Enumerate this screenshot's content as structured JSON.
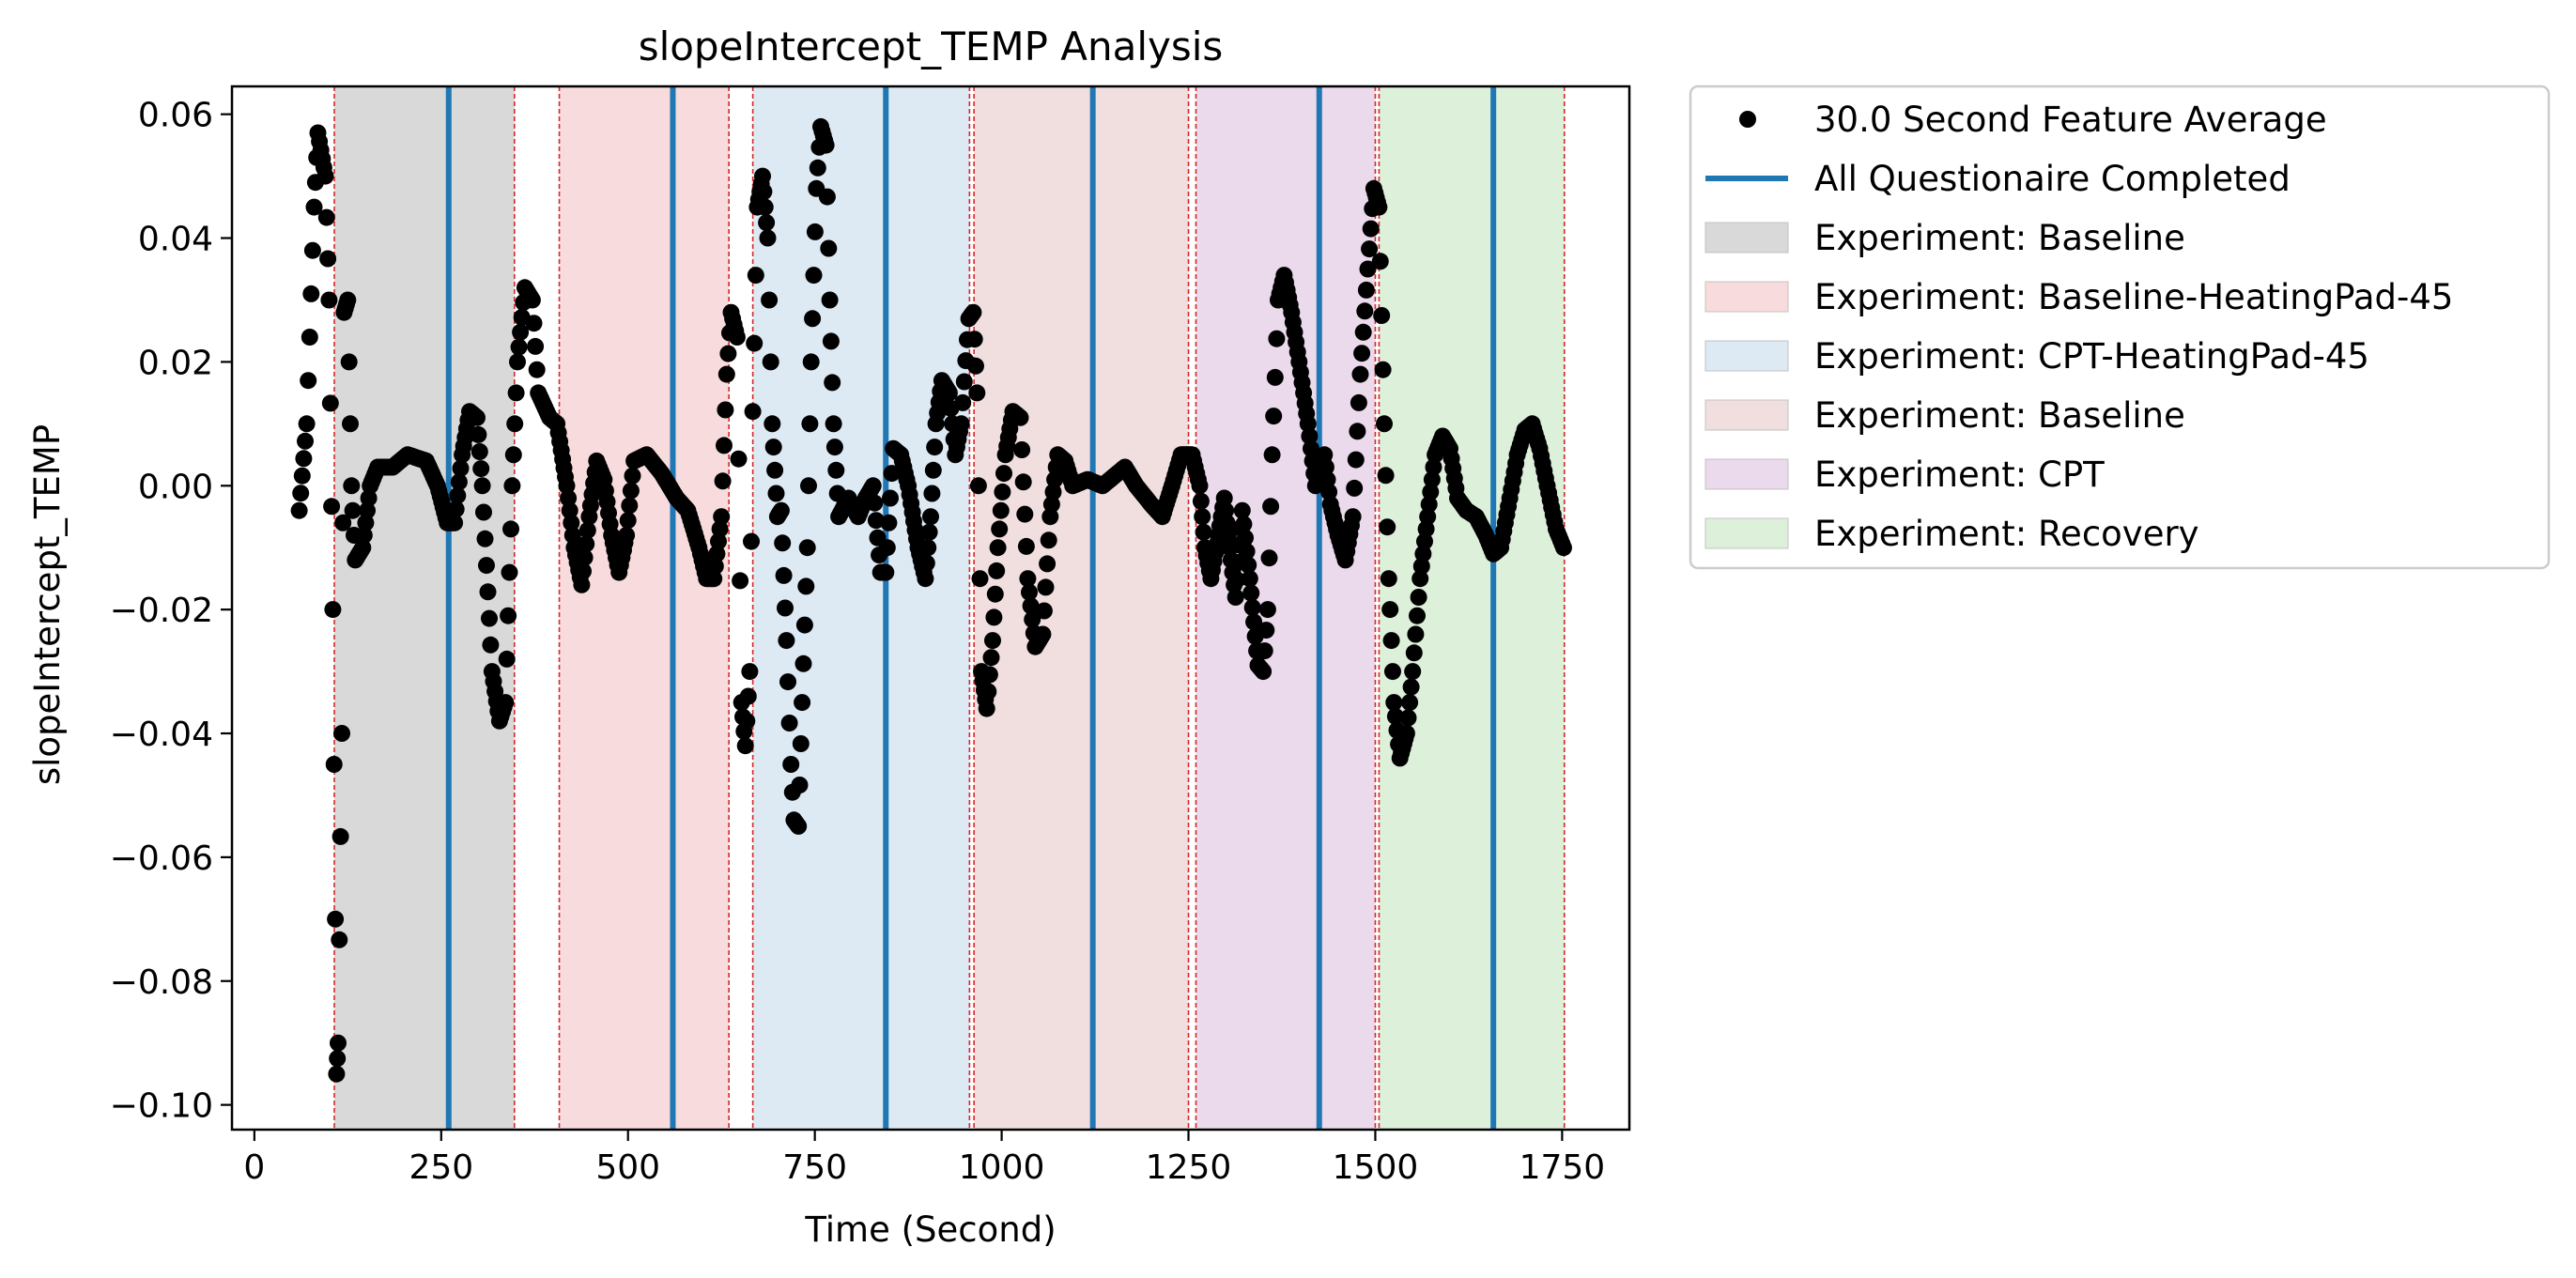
{
  "chart_data": {
    "type": "scatter",
    "title": "slopeIntercept_TEMP Analysis",
    "xlabel": "Time (Second)",
    "ylabel": "slopeIntercept_TEMP",
    "xlim": [
      -30,
      1840
    ],
    "ylim": [
      -0.104,
      0.0645
    ],
    "x_ticks": [
      0,
      250,
      500,
      750,
      1000,
      1250,
      1500,
      1750
    ],
    "x_tick_labels": [
      "0",
      "250",
      "500",
      "750",
      "1000",
      "1250",
      "1500",
      "1750"
    ],
    "y_ticks": [
      0.06,
      0.04,
      0.02,
      0.0,
      -0.02,
      -0.04,
      -0.06,
      -0.08,
      -0.1
    ],
    "y_tick_labels": [
      "0.06",
      "0.04",
      "0.02",
      "0.00",
      "−0.02",
      "−0.04",
      "−0.06",
      "−0.08",
      "−0.10"
    ],
    "grid": false,
    "legend_position": "outside-right",
    "legend": [
      {
        "label": "30.0 Second Feature Average",
        "kind": "marker",
        "color": "#000000"
      },
      {
        "label": "All Questionaire Completed",
        "kind": "line",
        "color": "#1f77b4"
      },
      {
        "label": "Experiment: Baseline",
        "kind": "patch",
        "color": "#d9d9d9"
      },
      {
        "label": "Experiment: Baseline-HeatingPad-45",
        "kind": "patch",
        "color": "#f8dcdd"
      },
      {
        "label": "Experiment: CPT-HeatingPad-45",
        "kind": "patch",
        "color": "#dde9f3"
      },
      {
        "label": "Experiment: Baseline",
        "kind": "patch",
        "color": "#f1dfe0"
      },
      {
        "label": "Experiment: CPT",
        "kind": "patch",
        "color": "#ebd9ec"
      },
      {
        "label": "Experiment: Recovery",
        "kind": "patch",
        "color": "#ddf0da"
      }
    ],
    "phase_spans": [
      {
        "x0": 107,
        "x1": 348,
        "color": "#d9d9d9"
      },
      {
        "x0": 408,
        "x1": 635,
        "color": "#f8dcdd"
      },
      {
        "x0": 667,
        "x1": 957,
        "color": "#dde9f3"
      },
      {
        "x0": 963,
        "x1": 1250,
        "color": "#f1dfe0"
      },
      {
        "x0": 1260,
        "x1": 1500,
        "color": "#ebd9ec"
      },
      {
        "x0": 1505,
        "x1": 1753,
        "color": "#ddf0da"
      }
    ],
    "boundary_lines": [
      107,
      348,
      408,
      635,
      667,
      957,
      963,
      1250,
      1260,
      1500,
      1505,
      1753
    ],
    "boundary_color": "#d62728",
    "questionnaire_lines": [
      260,
      560,
      845,
      1122,
      1425,
      1658
    ],
    "questionnaire_color": "#1f77b4",
    "marker_color": "#000000",
    "key_points": [
      [
        60,
        -0.004
      ],
      [
        70,
        0.01
      ],
      [
        80,
        0.045
      ],
      [
        85,
        0.057
      ],
      [
        95,
        0.05
      ],
      [
        100,
        0.03
      ],
      [
        105,
        -0.02
      ],
      [
        110,
        -0.095
      ],
      [
        112,
        -0.09
      ],
      [
        117,
        -0.04
      ],
      [
        120,
        0.028
      ],
      [
        125,
        0.03
      ],
      [
        130,
        0.0
      ],
      [
        135,
        -0.012
      ],
      [
        145,
        -0.01
      ],
      [
        155,
        0.0
      ],
      [
        165,
        0.003
      ],
      [
        185,
        0.003
      ],
      [
        205,
        0.005
      ],
      [
        230,
        0.004
      ],
      [
        245,
        0.0
      ],
      [
        258,
        -0.006
      ],
      [
        268,
        -0.006
      ],
      [
        278,
        0.005
      ],
      [
        288,
        0.012
      ],
      [
        298,
        0.011
      ],
      [
        305,
        0.0
      ],
      [
        318,
        -0.03
      ],
      [
        328,
        -0.038
      ],
      [
        336,
        -0.035
      ],
      [
        345,
        0.0
      ],
      [
        352,
        0.02
      ],
      [
        362,
        0.032
      ],
      [
        372,
        0.03
      ],
      [
        380,
        0.015
      ],
      [
        395,
        0.011
      ],
      [
        405,
        0.01
      ],
      [
        418,
        0.0
      ],
      [
        428,
        -0.01
      ],
      [
        438,
        -0.016
      ],
      [
        448,
        -0.005
      ],
      [
        458,
        0.004
      ],
      [
        468,
        0.001
      ],
      [
        478,
        -0.008
      ],
      [
        488,
        -0.014
      ],
      [
        498,
        -0.008
      ],
      [
        508,
        0.004
      ],
      [
        525,
        0.005
      ],
      [
        545,
        0.002
      ],
      [
        565,
        -0.002
      ],
      [
        580,
        -0.004
      ],
      [
        595,
        -0.01
      ],
      [
        605,
        -0.015
      ],
      [
        615,
        -0.015
      ],
      [
        625,
        -0.005
      ],
      [
        632,
        0.018
      ],
      [
        638,
        0.028
      ],
      [
        646,
        0.024
      ],
      [
        652,
        -0.035
      ],
      [
        657,
        -0.042
      ],
      [
        663,
        -0.03
      ],
      [
        667,
        0.012
      ],
      [
        673,
        0.045
      ],
      [
        680,
        0.05
      ],
      [
        687,
        0.04
      ],
      [
        693,
        0.01
      ],
      [
        700,
        -0.005
      ],
      [
        705,
        -0.004
      ],
      [
        712,
        -0.025
      ],
      [
        718,
        -0.045
      ],
      [
        722,
        -0.054
      ],
      [
        728,
        -0.055
      ],
      [
        733,
        -0.035
      ],
      [
        740,
        -0.01
      ],
      [
        745,
        0.02
      ],
      [
        752,
        0.048
      ],
      [
        758,
        0.058
      ],
      [
        765,
        0.055
      ],
      [
        770,
        0.03
      ],
      [
        775,
        0.01
      ],
      [
        782,
        -0.005
      ],
      [
        795,
        -0.002
      ],
      [
        808,
        -0.005
      ],
      [
        818,
        -0.002
      ],
      [
        828,
        0.0
      ],
      [
        838,
        -0.014
      ],
      [
        845,
        -0.014
      ],
      [
        855,
        0.006
      ],
      [
        865,
        0.005
      ],
      [
        875,
        0.0
      ],
      [
        888,
        -0.01
      ],
      [
        898,
        -0.015
      ],
      [
        905,
        -0.005
      ],
      [
        912,
        0.01
      ],
      [
        920,
        0.017
      ],
      [
        930,
        0.015
      ],
      [
        938,
        0.005
      ],
      [
        946,
        0.01
      ],
      [
        956,
        0.027
      ],
      [
        962,
        0.028
      ],
      [
        967,
        0.015
      ],
      [
        973,
        -0.03
      ],
      [
        980,
        -0.036
      ],
      [
        988,
        -0.025
      ],
      [
        995,
        -0.01
      ],
      [
        1005,
        0.005
      ],
      [
        1015,
        0.012
      ],
      [
        1025,
        0.011
      ],
      [
        1035,
        -0.015
      ],
      [
        1045,
        -0.026
      ],
      [
        1055,
        -0.024
      ],
      [
        1065,
        -0.005
      ],
      [
        1075,
        0.005
      ],
      [
        1085,
        0.004
      ],
      [
        1095,
        0.0
      ],
      [
        1115,
        0.001
      ],
      [
        1135,
        0.0
      ],
      [
        1155,
        0.002
      ],
      [
        1165,
        0.003
      ],
      [
        1180,
        0.0
      ],
      [
        1200,
        -0.003
      ],
      [
        1215,
        -0.005
      ],
      [
        1228,
        0.0
      ],
      [
        1240,
        0.005
      ],
      [
        1255,
        0.005
      ],
      [
        1265,
        0.0
      ],
      [
        1272,
        -0.01
      ],
      [
        1280,
        -0.015
      ],
      [
        1290,
        -0.008
      ],
      [
        1298,
        -0.002
      ],
      [
        1305,
        -0.01
      ],
      [
        1313,
        -0.018
      ],
      [
        1322,
        -0.004
      ],
      [
        1332,
        -0.015
      ],
      [
        1343,
        -0.029
      ],
      [
        1350,
        -0.03
      ],
      [
        1356,
        -0.02
      ],
      [
        1362,
        0.005
      ],
      [
        1370,
        0.03
      ],
      [
        1378,
        0.034
      ],
      [
        1388,
        0.028
      ],
      [
        1398,
        0.02
      ],
      [
        1410,
        0.01
      ],
      [
        1420,
        0.0
      ],
      [
        1432,
        0.005
      ],
      [
        1440,
        -0.003
      ],
      [
        1450,
        -0.008
      ],
      [
        1460,
        -0.012
      ],
      [
        1470,
        -0.005
      ],
      [
        1480,
        0.018
      ],
      [
        1490,
        0.035
      ],
      [
        1498,
        0.048
      ],
      [
        1505,
        0.045
      ],
      [
        1512,
        0.01
      ],
      [
        1518,
        -0.015
      ],
      [
        1525,
        -0.035
      ],
      [
        1533,
        -0.044
      ],
      [
        1542,
        -0.04
      ],
      [
        1550,
        -0.03
      ],
      [
        1560,
        -0.015
      ],
      [
        1570,
        -0.005
      ],
      [
        1580,
        0.005
      ],
      [
        1590,
        0.008
      ],
      [
        1600,
        0.006
      ],
      [
        1610,
        -0.002
      ],
      [
        1622,
        -0.004
      ],
      [
        1635,
        -0.005
      ],
      [
        1648,
        -0.008
      ],
      [
        1658,
        -0.011
      ],
      [
        1668,
        -0.01
      ],
      [
        1680,
        -0.002
      ],
      [
        1690,
        0.005
      ],
      [
        1700,
        0.009
      ],
      [
        1710,
        0.01
      ],
      [
        1720,
        0.006
      ],
      [
        1730,
        0.0
      ],
      [
        1742,
        -0.007
      ],
      [
        1752,
        -0.01
      ]
    ]
  }
}
